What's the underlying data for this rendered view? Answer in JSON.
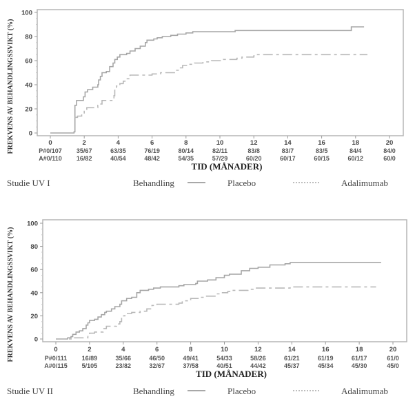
{
  "chart_data": [
    {
      "type": "line",
      "subtype": "kaplan-meier-step",
      "study_label": "Studie UV I",
      "ylabel": "FREKVENS AV BEHANDLINGSSVIKT (%)",
      "xlabel": "TID (MÅNADER)",
      "xlim": [
        0,
        20
      ],
      "ylim": [
        0,
        100
      ],
      "x_ticks": [
        "0",
        "2",
        "4",
        "6",
        "8",
        "10",
        "12",
        "14",
        "16",
        "18",
        "20"
      ],
      "y_ticks": [
        "0",
        "20",
        "40",
        "60",
        "80",
        "100"
      ],
      "risk_table": {
        "rows": [
          {
            "prefix": "P#",
            "values": [
              "0/107",
              "35/67",
              "63/35",
              "76/19",
              "80/14",
              "82/11",
              "83/8",
              "83/7",
              "83/5",
              "84/4",
              "84/0"
            ]
          },
          {
            "prefix": "A#",
            "values": [
              "0/110",
              "16/82",
              "40/54",
              "48/42",
              "54/35",
              "57/29",
              "60/20",
              "60/17",
              "60/15",
              "60/12",
              "60/0"
            ]
          }
        ]
      },
      "legend": {
        "title": "Behandling",
        "entries": [
          {
            "name": "Placebo",
            "style": "solid"
          },
          {
            "name": "Adalimumab",
            "style": "dashed"
          }
        ]
      },
      "series": [
        {
          "name": "Placebo",
          "style": "solid",
          "points": [
            [
              0,
              0
            ],
            [
              1.35,
              0
            ],
            [
              1.4,
              1
            ],
            [
              1.45,
              23
            ],
            [
              1.55,
              27
            ],
            [
              1.9,
              27
            ],
            [
              1.95,
              30
            ],
            [
              2.05,
              34
            ],
            [
              2.2,
              36
            ],
            [
              2.5,
              38
            ],
            [
              2.8,
              40
            ],
            [
              2.85,
              44
            ],
            [
              2.95,
              47
            ],
            [
              3.05,
              50
            ],
            [
              3.3,
              51
            ],
            [
              3.5,
              55
            ],
            [
              3.7,
              58
            ],
            [
              3.8,
              61
            ],
            [
              3.95,
              63
            ],
            [
              4.1,
              65
            ],
            [
              4.5,
              66
            ],
            [
              4.7,
              68
            ],
            [
              5.0,
              70
            ],
            [
              5.3,
              72
            ],
            [
              5.6,
              75
            ],
            [
              5.7,
              77
            ],
            [
              6.1,
              78
            ],
            [
              6.3,
              79
            ],
            [
              6.6,
              80
            ],
            [
              7.1,
              81
            ],
            [
              7.5,
              82
            ],
            [
              8.0,
              83
            ],
            [
              8.4,
              84
            ],
            [
              9.0,
              84
            ],
            [
              10.9,
              85
            ],
            [
              17.7,
              85
            ],
            [
              17.75,
              88
            ],
            [
              18.5,
              88
            ]
          ]
        },
        {
          "name": "Adalimumab",
          "style": "dashed",
          "points": [
            [
              1.45,
              13
            ],
            [
              1.6,
              14
            ],
            [
              1.85,
              16
            ],
            [
              2.0,
              18
            ],
            [
              2.15,
              21
            ],
            [
              2.5,
              21
            ],
            [
              2.8,
              23
            ],
            [
              2.9,
              24
            ],
            [
              3.05,
              27
            ],
            [
              3.7,
              27
            ],
            [
              3.75,
              31
            ],
            [
              3.8,
              36
            ],
            [
              3.9,
              39
            ],
            [
              4.1,
              41
            ],
            [
              4.3,
              43
            ],
            [
              4.5,
              45
            ],
            [
              4.7,
              48
            ],
            [
              5.2,
              48
            ],
            [
              6.0,
              49
            ],
            [
              6.5,
              50
            ],
            [
              7.2,
              50
            ],
            [
              7.4,
              52
            ],
            [
              7.6,
              54
            ],
            [
              7.8,
              56
            ],
            [
              8.1,
              57
            ],
            [
              8.5,
              58
            ],
            [
              9.0,
              59
            ],
            [
              9.5,
              60
            ],
            [
              10.2,
              61
            ],
            [
              11.0,
              62
            ],
            [
              11.3,
              63
            ],
            [
              12.0,
              64
            ],
            [
              12.1,
              65
            ],
            [
              18.7,
              65
            ]
          ]
        }
      ]
    },
    {
      "type": "line",
      "subtype": "kaplan-meier-step",
      "study_label": "Studie UV II",
      "ylabel": "FREKVENS AV BEHANDLINGSSVIKT (%)",
      "xlabel": "TID (MÅNADER)",
      "xlim": [
        0,
        20
      ],
      "ylim": [
        0,
        100
      ],
      "x_ticks": [
        "0",
        "2",
        "4",
        "6",
        "8",
        "10",
        "12",
        "14",
        "16",
        "18",
        "20"
      ],
      "y_ticks": [
        "0",
        "20",
        "40",
        "60",
        "80",
        "100"
      ],
      "risk_table": {
        "rows": [
          {
            "prefix": "P#",
            "values": [
              "0/111",
              "16/89",
              "35/66",
              "46/50",
              "49/41",
              "54/33",
              "58/26",
              "61/21",
              "61/19",
              "61/17",
              "61/0"
            ]
          },
          {
            "prefix": "A#",
            "values": [
              "0/115",
              "5/105",
              "23/82",
              "32/67",
              "37/58",
              "40/51",
              "44/42",
              "45/37",
              "45/34",
              "45/30",
              "45/0"
            ]
          }
        ]
      },
      "legend": {
        "title": "Behandling",
        "entries": [
          {
            "name": "Placebo",
            "style": "solid"
          },
          {
            "name": "Adalimumab",
            "style": "dashed"
          }
        ]
      },
      "series": [
        {
          "name": "Placebo",
          "style": "solid",
          "points": [
            [
              0,
              0
            ],
            [
              0.6,
              0
            ],
            [
              0.7,
              1
            ],
            [
              0.9,
              2
            ],
            [
              1.0,
              4
            ],
            [
              1.2,
              6
            ],
            [
              1.4,
              7
            ],
            [
              1.6,
              9
            ],
            [
              1.8,
              12
            ],
            [
              1.9,
              14
            ],
            [
              2.0,
              16
            ],
            [
              2.3,
              17
            ],
            [
              2.5,
              19
            ],
            [
              2.7,
              21
            ],
            [
              2.9,
              23
            ],
            [
              3.0,
              24
            ],
            [
              3.3,
              26
            ],
            [
              3.5,
              28
            ],
            [
              3.8,
              30
            ],
            [
              3.9,
              33
            ],
            [
              4.2,
              35
            ],
            [
              4.5,
              36
            ],
            [
              4.8,
              40
            ],
            [
              5.0,
              42
            ],
            [
              5.5,
              43
            ],
            [
              5.8,
              44
            ],
            [
              6.2,
              45
            ],
            [
              7.3,
              46
            ],
            [
              7.6,
              47
            ],
            [
              8.3,
              48
            ],
            [
              8.4,
              50
            ],
            [
              9.0,
              51
            ],
            [
              9.5,
              53
            ],
            [
              10.0,
              55
            ],
            [
              10.3,
              56
            ],
            [
              11.0,
              59
            ],
            [
              11.5,
              61
            ],
            [
              12.0,
              62
            ],
            [
              12.7,
              64
            ],
            [
              13.6,
              65
            ],
            [
              13.9,
              66
            ],
            [
              19.3,
              66
            ]
          ]
        },
        {
          "name": "Adalimumab",
          "style": "dashed",
          "points": [
            [
              0,
              0
            ],
            [
              0.9,
              0
            ],
            [
              1.0,
              1
            ],
            [
              1.8,
              1
            ],
            [
              1.9,
              3
            ],
            [
              2.0,
              5
            ],
            [
              2.3,
              6
            ],
            [
              2.8,
              9
            ],
            [
              3.0,
              11
            ],
            [
              3.6,
              13
            ],
            [
              3.8,
              15
            ],
            [
              3.9,
              20
            ],
            [
              4.1,
              22
            ],
            [
              4.5,
              23
            ],
            [
              5.0,
              24
            ],
            [
              5.4,
              26
            ],
            [
              5.7,
              29
            ],
            [
              6.0,
              30
            ],
            [
              7.3,
              31
            ],
            [
              7.5,
              33
            ],
            [
              8.0,
              35
            ],
            [
              8.5,
              36
            ],
            [
              8.8,
              37
            ],
            [
              9.5,
              39
            ],
            [
              9.8,
              40
            ],
            [
              10.2,
              41
            ],
            [
              10.4,
              42
            ],
            [
              11.4,
              43
            ],
            [
              11.7,
              44
            ],
            [
              13.9,
              45
            ],
            [
              19.0,
              45
            ]
          ]
        }
      ]
    }
  ]
}
